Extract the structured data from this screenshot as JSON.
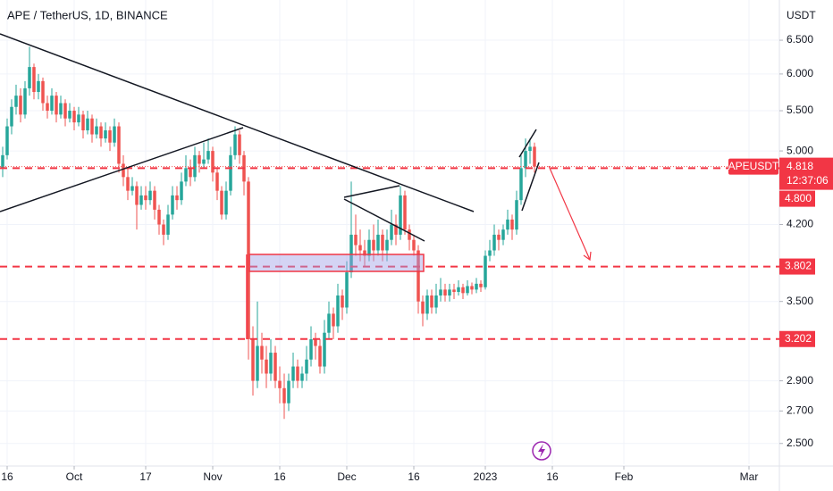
{
  "chart_data": {
    "type": "candlestick",
    "title": "APE / TetherUS, 1D, BINANCE",
    "y_axis_label": "USDT",
    "log_scale": true,
    "up_color": "#26a69a",
    "down_color": "#ef5350",
    "xlim": [
      -0.6,
      173.8
    ],
    "xticks": [
      {
        "value": 1,
        "label": "16"
      },
      {
        "value": 16,
        "label": "Oct"
      },
      {
        "value": 32,
        "label": "17"
      },
      {
        "value": 47,
        "label": "Nov"
      },
      {
        "value": 62,
        "label": "16"
      },
      {
        "value": 77,
        "label": "Dec"
      },
      {
        "value": 92,
        "label": "16"
      },
      {
        "value": 108,
        "label": "2023"
      },
      {
        "value": 123,
        "label": "16"
      },
      {
        "value": 139,
        "label": "Feb"
      },
      {
        "value": 167,
        "label": "Mar"
      }
    ],
    "ylim": [
      2.38,
      7.15
    ],
    "yticks": [
      {
        "value": 2.5,
        "label": "2.500"
      },
      {
        "value": 2.7,
        "label": "2.700"
      },
      {
        "value": 2.9,
        "label": "2.900"
      },
      {
        "value": 3.5,
        "label": "3.500"
      },
      {
        "value": 4.2,
        "label": "4.200"
      },
      {
        "value": 5,
        "label": "5.000"
      },
      {
        "value": 5.5,
        "label": "5.500"
      },
      {
        "value": 6,
        "label": "6.000"
      },
      {
        "value": 6.5,
        "label": "6.500"
      }
    ],
    "last_price": {
      "symbol": "APEUSDT",
      "value": 4.818,
      "countdown": "12:37:06"
    },
    "levels": [
      {
        "value": 4.8,
        "label": "4.800"
      },
      3.802,
      3.202
    ],
    "level_color": "#f23645",
    "candles": [
      [
        4.8,
        5.05,
        4.7,
        4.95
      ],
      [
        4.95,
        5.4,
        4.9,
        5.3
      ],
      [
        5.3,
        5.65,
        5.2,
        5.55
      ],
      [
        5.55,
        5.85,
        5.45,
        5.7
      ],
      [
        5.7,
        5.8,
        5.35,
        5.45
      ],
      [
        5.45,
        5.9,
        5.4,
        5.8
      ],
      [
        5.8,
        6.4,
        5.7,
        6.1
      ],
      [
        6.1,
        6.15,
        5.65,
        5.75
      ],
      [
        5.75,
        6.0,
        5.65,
        5.9
      ],
      [
        5.9,
        5.95,
        5.5,
        5.6
      ],
      [
        5.6,
        5.7,
        5.4,
        5.5
      ],
      [
        5.5,
        5.8,
        5.45,
        5.7
      ],
      [
        5.7,
        5.75,
        5.35,
        5.45
      ],
      [
        5.45,
        5.7,
        5.4,
        5.6
      ],
      [
        5.6,
        5.65,
        5.3,
        5.4
      ],
      [
        5.4,
        5.6,
        5.35,
        5.5
      ],
      [
        5.5,
        5.55,
        5.25,
        5.35
      ],
      [
        5.35,
        5.55,
        5.3,
        5.45
      ],
      [
        5.45,
        5.5,
        5.15,
        5.25
      ],
      [
        5.25,
        5.5,
        5.2,
        5.4
      ],
      [
        5.4,
        5.45,
        5.1,
        5.2
      ],
      [
        5.2,
        5.4,
        5.15,
        5.3
      ],
      [
        5.3,
        5.35,
        5.05,
        5.15
      ],
      [
        5.15,
        5.35,
        5.1,
        5.25
      ],
      [
        5.25,
        5.3,
        5.0,
        5.1
      ],
      [
        5.1,
        5.4,
        5.05,
        5.3
      ],
      [
        5.3,
        5.35,
        4.75,
        4.85
      ],
      [
        4.85,
        4.95,
        4.6,
        4.7
      ],
      [
        4.7,
        4.8,
        4.45,
        4.55
      ],
      [
        4.55,
        4.7,
        4.5,
        4.6
      ],
      [
        4.6,
        4.65,
        4.15,
        4.4
      ],
      [
        4.4,
        4.6,
        4.35,
        4.5
      ],
      [
        4.5,
        4.6,
        4.35,
        4.45
      ],
      [
        4.45,
        4.65,
        4.4,
        4.55
      ],
      [
        4.55,
        4.6,
        4.25,
        4.35
      ],
      [
        4.35,
        4.4,
        4.1,
        4.2
      ],
      [
        4.2,
        4.25,
        4.0,
        4.1
      ],
      [
        4.1,
        4.4,
        4.05,
        4.3
      ],
      [
        4.3,
        4.6,
        4.25,
        4.5
      ],
      [
        4.5,
        4.6,
        4.35,
        4.45
      ],
      [
        4.45,
        4.75,
        4.4,
        4.65
      ],
      [
        4.65,
        4.95,
        4.6,
        4.8
      ],
      [
        4.8,
        4.9,
        4.6,
        4.7
      ],
      [
        4.7,
        5.05,
        4.65,
        4.95
      ],
      [
        4.95,
        5.0,
        4.75,
        4.85
      ],
      [
        4.85,
        5.1,
        4.8,
        4.9
      ],
      [
        4.9,
        5.15,
        4.85,
        5.0
      ],
      [
        5.0,
        5.05,
        4.65,
        4.75
      ],
      [
        4.75,
        4.8,
        4.45,
        4.55
      ],
      [
        4.55,
        4.6,
        4.25,
        4.3
      ],
      [
        4.3,
        4.65,
        4.25,
        4.55
      ],
      [
        4.55,
        5.05,
        4.5,
        4.95
      ],
      [
        4.95,
        5.3,
        4.9,
        5.2
      ],
      [
        5.2,
        5.25,
        4.85,
        4.95
      ],
      [
        4.95,
        5.0,
        4.5,
        4.65
      ],
      [
        4.65,
        4.7,
        3.05,
        3.2
      ],
      [
        3.2,
        3.3,
        2.8,
        2.9
      ],
      [
        2.9,
        3.5,
        2.85,
        3.15
      ],
      [
        3.15,
        3.25,
        2.95,
        3.05
      ],
      [
        3.05,
        3.15,
        2.85,
        2.95
      ],
      [
        2.95,
        3.2,
        2.9,
        3.1
      ],
      [
        3.1,
        3.15,
        2.85,
        2.9
      ],
      [
        2.9,
        3.0,
        2.75,
        2.85
      ],
      [
        2.85,
        2.95,
        2.65,
        2.75
      ],
      [
        2.75,
        2.95,
        2.7,
        2.9
      ],
      [
        2.9,
        3.1,
        2.85,
        3.0
      ],
      [
        3.0,
        3.05,
        2.85,
        2.9
      ],
      [
        2.9,
        3.0,
        2.85,
        2.95
      ],
      [
        2.95,
        3.15,
        2.9,
        3.05
      ],
      [
        3.05,
        3.3,
        3.0,
        3.2
      ],
      [
        3.2,
        3.25,
        3.05,
        3.15
      ],
      [
        3.15,
        3.2,
        2.95,
        3.0
      ],
      [
        3.0,
        3.35,
        2.95,
        3.25
      ],
      [
        3.25,
        3.5,
        3.2,
        3.4
      ],
      [
        3.4,
        3.45,
        3.2,
        3.3
      ],
      [
        3.3,
        3.65,
        3.25,
        3.55
      ],
      [
        3.55,
        3.6,
        3.35,
        3.45
      ],
      [
        3.45,
        3.85,
        3.4,
        3.75
      ],
      [
        3.75,
        4.65,
        3.7,
        4.1
      ],
      [
        4.1,
        4.3,
        3.9,
        4.0
      ],
      [
        4.0,
        4.15,
        3.85,
        3.95
      ],
      [
        3.95,
        4.05,
        3.8,
        3.9
      ],
      [
        3.9,
        4.15,
        3.85,
        4.05
      ],
      [
        4.05,
        4.2,
        3.85,
        3.95
      ],
      [
        3.95,
        4.25,
        3.9,
        4.1
      ],
      [
        4.1,
        4.15,
        3.85,
        3.95
      ],
      [
        3.95,
        4.15,
        3.85,
        4.05
      ],
      [
        4.05,
        4.35,
        4.0,
        4.2
      ],
      [
        4.2,
        4.3,
        4.0,
        4.1
      ],
      [
        4.1,
        4.6,
        4.05,
        4.5
      ],
      [
        4.5,
        4.55,
        4.1,
        4.15
      ],
      [
        4.15,
        4.2,
        3.95,
        4.05
      ],
      [
        4.05,
        4.1,
        3.9,
        3.95
      ],
      [
        3.95,
        4.0,
        3.4,
        3.5
      ],
      [
        3.5,
        3.55,
        3.3,
        3.4
      ],
      [
        3.4,
        3.6,
        3.35,
        3.55
      ],
      [
        3.55,
        3.6,
        3.4,
        3.45
      ],
      [
        3.45,
        3.65,
        3.4,
        3.55
      ],
      [
        3.55,
        3.7,
        3.5,
        3.6
      ],
      [
        3.6,
        3.65,
        3.5,
        3.55
      ],
      [
        3.55,
        3.65,
        3.5,
        3.6
      ],
      [
        3.6,
        3.65,
        3.52,
        3.58
      ],
      [
        3.58,
        3.68,
        3.55,
        3.62
      ],
      [
        3.62,
        3.65,
        3.52,
        3.57
      ],
      [
        3.57,
        3.68,
        3.55,
        3.63
      ],
      [
        3.63,
        3.66,
        3.56,
        3.6
      ],
      [
        3.6,
        3.7,
        3.57,
        3.65
      ],
      [
        3.65,
        3.68,
        3.58,
        3.62
      ],
      [
        3.62,
        3.95,
        3.6,
        3.9
      ],
      [
        3.9,
        4.05,
        3.85,
        3.95
      ],
      [
        3.95,
        4.2,
        3.9,
        4.1
      ],
      [
        4.1,
        4.15,
        3.95,
        4.05
      ],
      [
        4.05,
        4.2,
        4.0,
        4.15
      ],
      [
        4.15,
        4.35,
        4.1,
        4.25
      ],
      [
        4.25,
        4.3,
        4.05,
        4.15
      ],
      [
        4.15,
        4.55,
        4.1,
        4.45
      ],
      [
        4.45,
        4.95,
        4.4,
        4.8
      ],
      [
        4.8,
        5.15,
        4.7,
        5.0
      ],
      [
        5.0,
        5.15,
        4.85,
        5.05
      ],
      [
        5.05,
        5.1,
        4.75,
        4.818
      ]
    ]
  }
}
